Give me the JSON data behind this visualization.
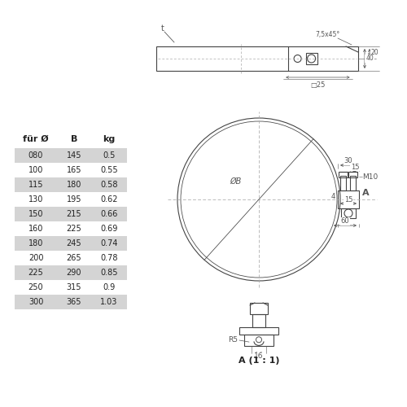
{
  "bg_color": "#ffffff",
  "line_color": "#444444",
  "dim_color": "#555555",
  "shade_color": "#d4d4d4",
  "shaded_rows": [
    0,
    2,
    4,
    6,
    8,
    10
  ],
  "table_headers": [
    "für Ø",
    "B",
    "kg"
  ],
  "table_data": [
    [
      "080",
      "145",
      "0.5"
    ],
    [
      "100",
      "165",
      "0.55"
    ],
    [
      "115",
      "180",
      "0.58"
    ],
    [
      "130",
      "195",
      "0.62"
    ],
    [
      "150",
      "215",
      "0.66"
    ],
    [
      "160",
      "225",
      "0.69"
    ],
    [
      "180",
      "245",
      "0.74"
    ],
    [
      "200",
      "265",
      "0.78"
    ],
    [
      "225",
      "290",
      "0.85"
    ],
    [
      "250",
      "315",
      "0.9"
    ],
    [
      "300",
      "365",
      "1.03"
    ]
  ]
}
